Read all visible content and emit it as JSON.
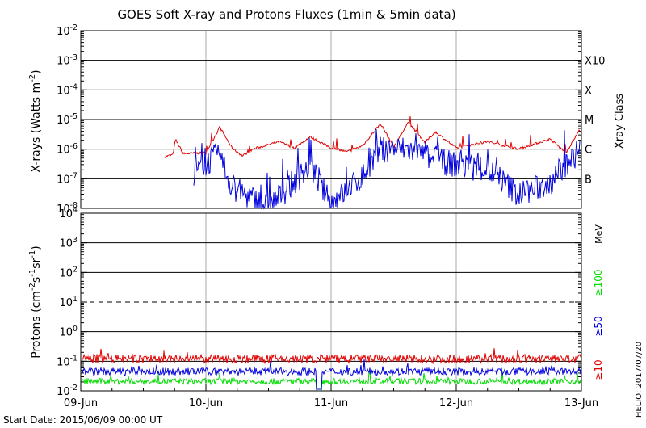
{
  "chart_data": [
    {
      "type": "line",
      "panel": "xray",
      "title": "GOES Soft X-ray and Protons Fluxes   (1min & 5min data)",
      "ylabel": "X-rays (Watts m",
      "ylabel_exp": "-2",
      "ylabel_close": ")",
      "y_scale": "log",
      "ylim": [
        1e-08,
        0.01
      ],
      "y_ticks": [
        {
          "base": "10",
          "exp": "-8"
        },
        {
          "base": "10",
          "exp": "-7"
        },
        {
          "base": "10",
          "exp": "-6"
        },
        {
          "base": "10",
          "exp": "-5"
        },
        {
          "base": "10",
          "exp": "-4"
        },
        {
          "base": "10",
          "exp": "-3"
        },
        {
          "base": "10",
          "exp": "-2"
        }
      ],
      "right_axis_label": "Xray Class",
      "classes": [
        {
          "label": "B",
          "level": 1e-07
        },
        {
          "label": "C",
          "level": 1e-06
        },
        {
          "label": "M",
          "level": 1e-05
        },
        {
          "label": "X",
          "level": 0.0001
        },
        {
          "label": "X10",
          "level": 0.001
        }
      ],
      "series": [
        {
          "color": "#e00000",
          "points": [
            [
              "2015-06-09T16:00",
              5.5e-07
            ],
            [
              "2015-06-09T17:40",
              6.5e-07
            ],
            [
              "2015-06-09T18:10",
              2.1e-06
            ],
            [
              "2015-06-09T19:40",
              7e-07
            ],
            [
              "2015-06-10T00:00",
              7.5e-07
            ],
            [
              "2015-06-10T02:40",
              5.5e-06
            ],
            [
              "2015-06-10T05:00",
              1.1e-06
            ],
            [
              "2015-06-10T07:00",
              6e-07
            ],
            [
              "2015-06-10T09:00",
              1e-06
            ],
            [
              "2015-06-10T12:00",
              1.4e-06
            ],
            [
              "2015-06-10T14:00",
              1.8e-06
            ],
            [
              "2015-06-10T17:00",
              1.1e-06
            ],
            [
              "2015-06-10T20:00",
              2.6e-06
            ],
            [
              "2015-06-11T00:00",
              1.1e-06
            ],
            [
              "2015-06-11T03:00",
              8e-07
            ],
            [
              "2015-06-11T06:00",
              1.3e-06
            ],
            [
              "2015-06-11T09:30",
              7.2e-06
            ],
            [
              "2015-06-11T12:00",
              1.2e-06
            ],
            [
              "2015-06-11T14:50",
              8e-06
            ],
            [
              "2015-06-11T18:00",
              1.7e-06
            ],
            [
              "2015-06-11T20:00",
              3.8e-06
            ],
            [
              "2015-06-12T00:00",
              1.1e-06
            ],
            [
              "2015-06-12T06:00",
              1.8e-06
            ],
            [
              "2015-06-12T12:00",
              1e-06
            ],
            [
              "2015-06-12T18:00",
              2.2e-06
            ],
            [
              "2015-06-12T21:00",
              7.5e-07
            ],
            [
              "2015-06-12T23:50",
              5e-06
            ]
          ]
        },
        {
          "color": "#0000dd",
          "points": [
            [
              "2015-06-09T21:40",
              1.5e-07
            ],
            [
              "2015-06-10T02:30",
              7e-07
            ],
            [
              "2015-06-10T05:00",
              5e-08
            ],
            [
              "2015-06-10T12:00",
              1.1e-08
            ],
            [
              "2015-06-10T20:00",
              2.7e-07
            ],
            [
              "2015-06-11T00:00",
              1.3e-08
            ],
            [
              "2015-06-11T06:00",
              1.2e-07
            ],
            [
              "2015-06-11T09:30",
              1e-06
            ],
            [
              "2015-06-11T14:40",
              1e-06
            ],
            [
              "2015-06-11T20:00",
              4e-07
            ],
            [
              "2015-06-12T06:00",
              2e-07
            ],
            [
              "2015-06-12T12:00",
              3e-08
            ],
            [
              "2015-06-12T18:00",
              7e-08
            ],
            [
              "2015-06-12T23:50",
              1e-06
            ]
          ]
        }
      ]
    },
    {
      "type": "line",
      "panel": "protons",
      "ylabel": "Protons (cm",
      "ylabel_parts": [
        {
          "t": "Protons (cm",
          "sup": false
        },
        {
          "t": "-2",
          "sup": true
        },
        {
          "t": "s",
          "sup": false
        },
        {
          "t": "-1",
          "sup": true
        },
        {
          "t": "sr",
          "sup": false
        },
        {
          "t": "-1",
          "sup": true
        },
        {
          "t": ")",
          "sup": false
        }
      ],
      "y_scale": "log",
      "ylim": [
        0.01,
        10000
      ],
      "y_ticks": [
        {
          "base": "10",
          "exp": "-2"
        },
        {
          "base": "10",
          "exp": "-1"
        },
        {
          "base": "10",
          "exp": "0"
        },
        {
          "base": "10",
          "exp": "1"
        },
        {
          "base": "10",
          "exp": "2"
        },
        {
          "base": "10",
          "exp": "3"
        },
        {
          "base": "10",
          "exp": "4"
        }
      ],
      "threshold": 10,
      "unit_label": "MeV",
      "series": [
        {
          "name": "≥10",
          "color": "#e00000",
          "typical": 0.12,
          "spread": 0.3
        },
        {
          "name": "≥50",
          "color": "#0000dd",
          "typical": 0.045,
          "spread": 0.25
        },
        {
          "name": "≥100",
          "color": "#00dd00",
          "typical": 0.021,
          "spread": 0.2
        }
      ]
    }
  ],
  "x_axis": {
    "range": [
      "2015-06-09T00:00",
      "2015-06-13T00:00"
    ],
    "ticks": [
      "09-Jun",
      "10-Jun",
      "11-Jun",
      "12-Jun",
      "13-Jun"
    ]
  },
  "start_date": "Start Date: 2015/06/09 00:00 UT",
  "credit": "HELIO: 2017/07/20"
}
